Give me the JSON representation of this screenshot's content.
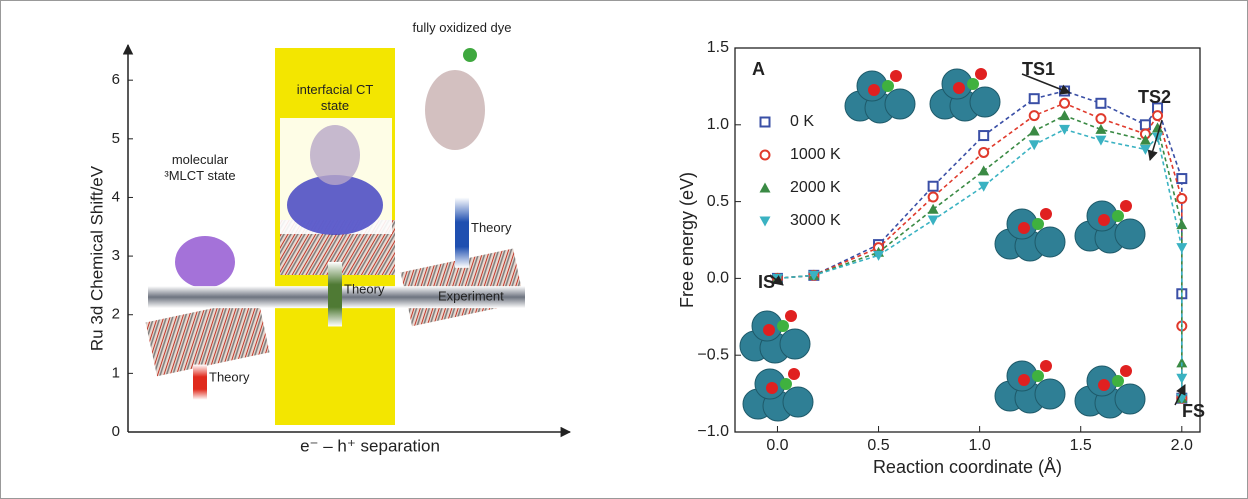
{
  "chart_data": [
    {
      "type": "range",
      "ylabel": "Ru 3d Chemical Shift/eV",
      "xlabel": "e⁻ – h⁺ separation",
      "ylim": [
        0,
        6.6
      ],
      "yticks": [
        0,
        1,
        2,
        3,
        4,
        5,
        6
      ],
      "categories": [
        "molecular ³MLCT state",
        "interfacial CT state",
        "fully oxidized dye"
      ],
      "band_colors": [
        null,
        "#f3e600",
        null
      ],
      "series": [
        {
          "name": "Theory",
          "colors": [
            "#e02a1c",
            "#4f7a34",
            "#1f4fb0"
          ],
          "low": [
            0.55,
            1.8,
            2.8
          ],
          "high": [
            1.15,
            2.9,
            4.0
          ]
        }
      ],
      "reference": {
        "name": "Experiment",
        "value": 2.3,
        "color": "#6e7480"
      }
    },
    {
      "type": "line",
      "xlabel": "Reaction coordinate (Å)",
      "ylabel": "Free energy (eV)",
      "xlim": [
        -0.21,
        2.09
      ],
      "ylim": [
        -1.0,
        1.5
      ],
      "xticks": [
        {
          "value": 0,
          "label": "0.0"
        },
        {
          "value": 0.5,
          "label": "0.5"
        },
        {
          "value": 1,
          "label": "1.0"
        },
        {
          "value": 1.5,
          "label": "1.5"
        },
        {
          "value": 2,
          "label": "2.0"
        }
      ],
      "yticks": [
        {
          "value": -1,
          "label": "−1.0"
        },
        {
          "value": -0.5,
          "label": "−0.5"
        },
        {
          "value": 0,
          "label": "0.0"
        },
        {
          "value": 0.5,
          "label": "0.5"
        },
        {
          "value": 1,
          "label": "1.0"
        },
        {
          "value": 1.5,
          "label": "1.5"
        }
      ],
      "annotations": [
        "A",
        "IS",
        "TS1",
        "TS2",
        "FS"
      ],
      "x": [
        0.0,
        0.18,
        0.5,
        0.77,
        1.02,
        1.27,
        1.42,
        1.6,
        1.82,
        1.88,
        2.0,
        2.0,
        2.0
      ],
      "series": [
        {
          "name": "0 K",
          "color": "#3a4fa6",
          "marker": "square",
          "values": [
            0,
            0.02,
            0.22,
            0.6,
            0.93,
            1.17,
            1.22,
            1.14,
            1.0,
            1.11,
            0.65,
            -0.1,
            -0.78
          ]
        },
        {
          "name": "1000 K",
          "color": "#e03a2c",
          "marker": "circle",
          "values": [
            0,
            0.02,
            0.2,
            0.53,
            0.82,
            1.06,
            1.14,
            1.04,
            0.94,
            1.06,
            0.52,
            -0.31,
            -0.78
          ]
        },
        {
          "name": "2000 K",
          "color": "#3a8a44",
          "marker": "triangle",
          "values": [
            0,
            0.02,
            0.17,
            0.45,
            0.7,
            0.96,
            1.06,
            0.97,
            0.9,
            0.98,
            0.35,
            -0.55,
            -0.78
          ]
        },
        {
          "name": "3000 K",
          "color": "#3ab2c2",
          "marker": "triangle-down",
          "values": [
            0,
            0.02,
            0.15,
            0.38,
            0.6,
            0.87,
            0.97,
            0.9,
            0.84,
            0.92,
            0.2,
            -0.65,
            -0.78
          ]
        }
      ]
    }
  ]
}
